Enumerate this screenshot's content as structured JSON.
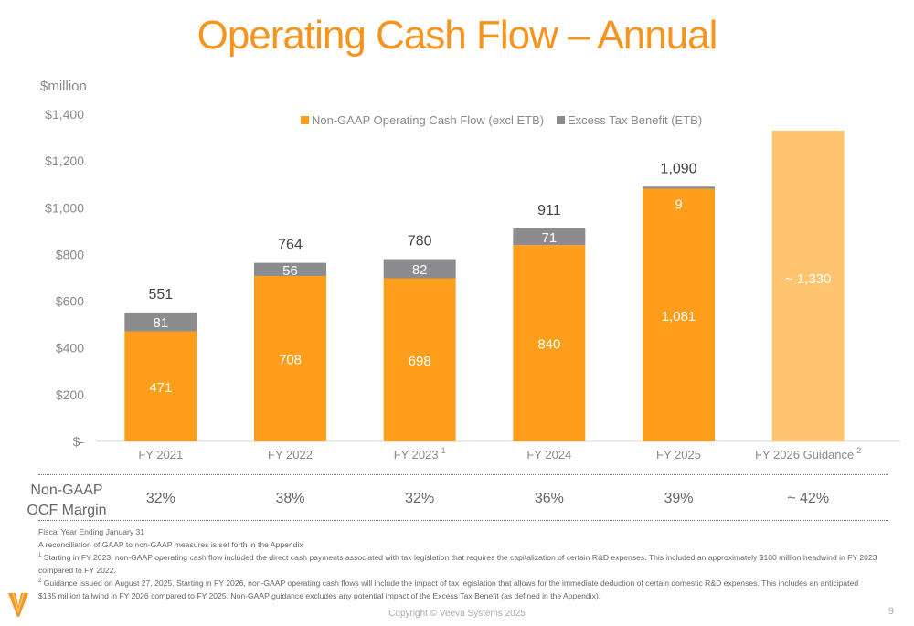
{
  "title": "Operating Cash Flow – Annual",
  "unit_label": "$million",
  "chart_data": {
    "type": "bar",
    "stacked": true,
    "categories": [
      "FY 2021",
      "FY 2022",
      "FY 2023",
      "FY 2024",
      "FY 2025",
      "FY 2026 Guidance"
    ],
    "category_superscripts": [
      "",
      "",
      "1",
      "",
      "",
      "2"
    ],
    "series": [
      {
        "name": "Non-GAAP Operating Cash Flow (excl ETB)",
        "color": "#FF9E1B",
        "values": [
          471,
          708,
          698,
          840,
          1081,
          null
        ],
        "labels": [
          "471",
          "708",
          "698",
          "840",
          "1,081",
          ""
        ]
      },
      {
        "name": "Excess Tax Benefit (ETB)",
        "color": "#8C8C8E",
        "values": [
          81,
          56,
          82,
          71,
          9,
          null
        ],
        "labels": [
          "81",
          "56",
          "82",
          "71",
          "9",
          ""
        ]
      }
    ],
    "guidance": {
      "category": "FY 2026 Guidance",
      "value": 1330,
      "label": "~ 1,330",
      "color": "#FFC46F"
    },
    "totals": [
      "551",
      "764",
      "780",
      "911",
      "1,090",
      ""
    ],
    "ylim": [
      0,
      1400
    ],
    "yticks": [
      0,
      200,
      400,
      600,
      800,
      1000,
      1200,
      1400
    ],
    "ytick_labels": [
      "$-",
      "$200",
      "$400",
      "$600",
      "$800",
      "$1,000",
      "$1,200",
      "$1,400"
    ],
    "legend_placement": "top-center",
    "grid": false
  },
  "margin_row": {
    "label_line1": "Non-GAAP",
    "label_line2": "OCF Margin",
    "values": [
      "32%",
      "38%",
      "32%",
      "36%",
      "39%",
      "~ 42%"
    ]
  },
  "notes": {
    "line1": "Fiscal Year Ending January 31",
    "line2": "A reconciliation of GAAP to non-GAAP measures is set forth in the Appendix",
    "fn1_mark": "1",
    "fn1": "Starting in FY 2023, non-GAAP operating cash flow included the direct cash payments associated with tax legislation that requires the capitalization of certain R&D expenses. This included an approximately $100 million headwind in FY 2023 compared to FY 2022.",
    "fn2_mark": "2",
    "fn2": "Guidance issued on August 27, 2025. Starting in FY 2026, non-GAAP operating cash flows will include the impact of tax legislation that allows for the immediate deduction of certain domestic R&D expenses. This includes an anticipated $135 million tailwind in FY 2026 compared to FY 2025. Non-GAAP guidance excludes any potential impact of the Excess Tax Benefit (as defined in the Appendix)."
  },
  "footer": {
    "copyright": "Copyright © Veeva Systems 2025",
    "page_number": "9",
    "logo_text": "V"
  }
}
